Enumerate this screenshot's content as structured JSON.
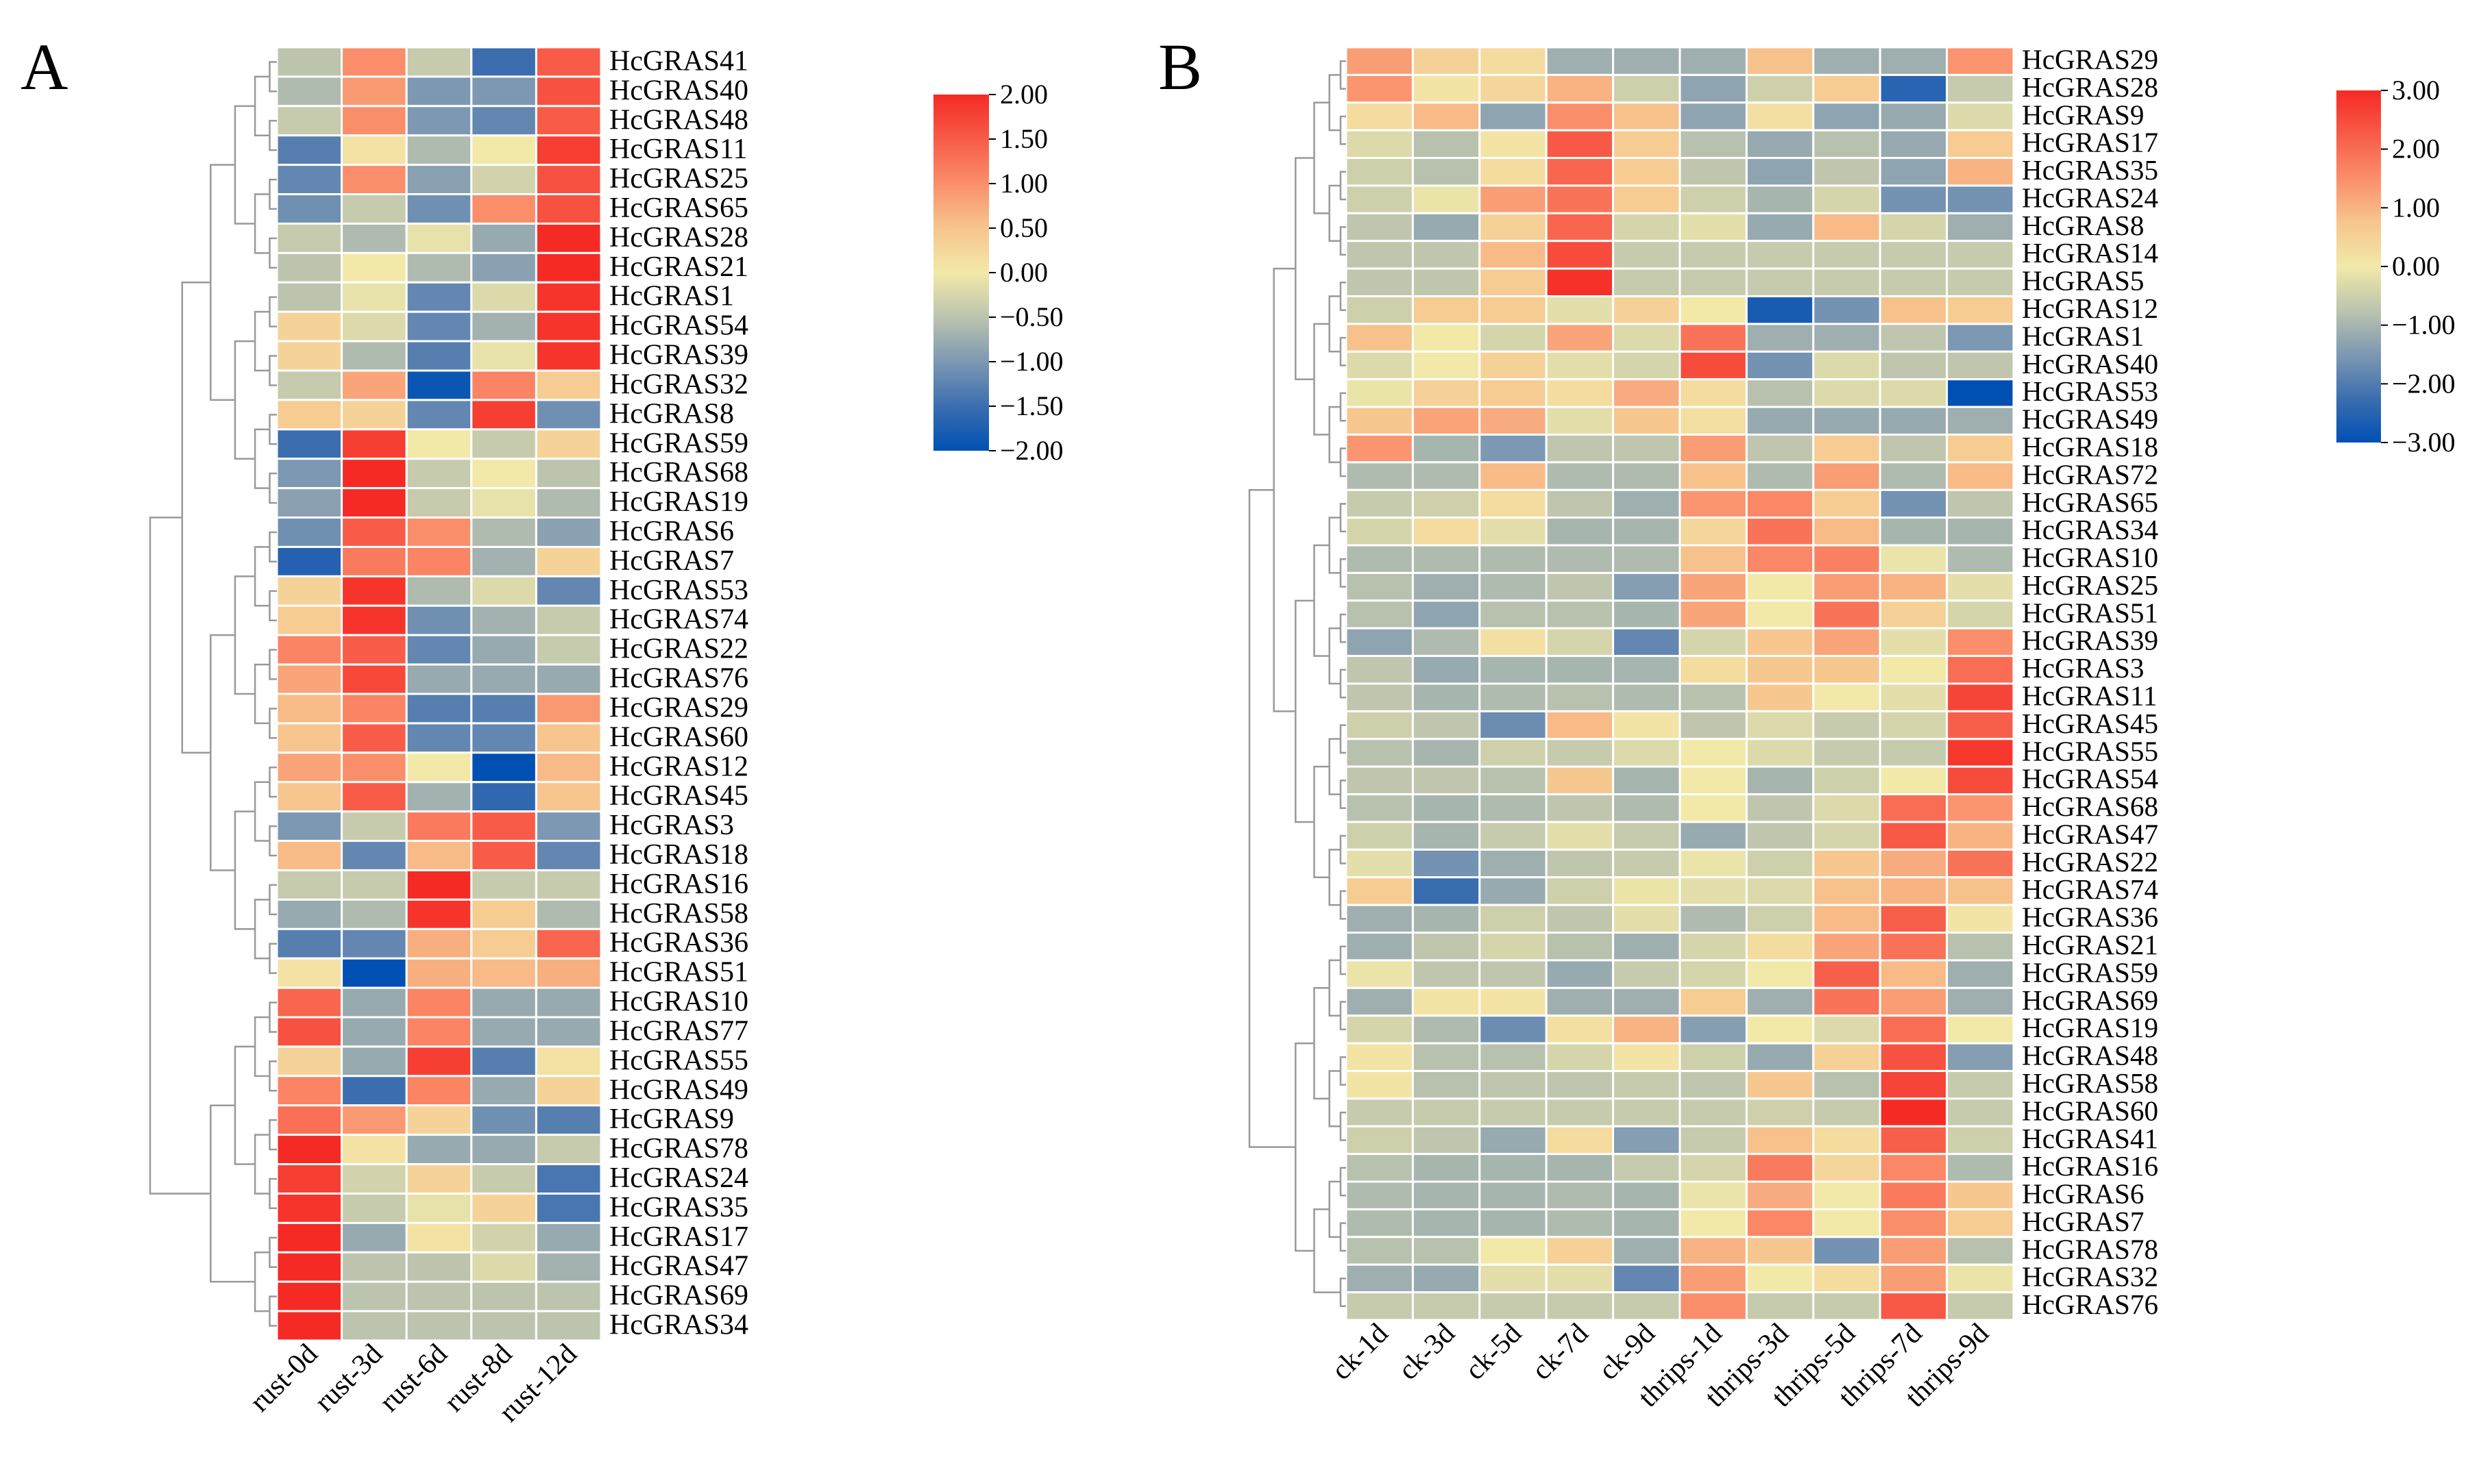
{
  "chart_data": [
    {
      "type": "heatmap",
      "panel_label": "A",
      "columns": [
        "rust-0d",
        "rust-3d",
        "rust-6d",
        "rust-8d",
        "rust-12d"
      ],
      "rows": [
        "HcGRAS41",
        "HcGRAS40",
        "HcGRAS48",
        "HcGRAS11",
        "HcGRAS25",
        "HcGRAS65",
        "HcGRAS28",
        "HcGRAS21",
        "HcGRAS1",
        "HcGRAS54",
        "HcGRAS39",
        "HcGRAS32",
        "HcGRAS8",
        "HcGRAS59",
        "HcGRAS68",
        "HcGRAS19",
        "HcGRAS6",
        "HcGRAS7",
        "HcGRAS53",
        "HcGRAS74",
        "HcGRAS22",
        "HcGRAS76",
        "HcGRAS29",
        "HcGRAS60",
        "HcGRAS12",
        "HcGRAS45",
        "HcGRAS3",
        "HcGRAS18",
        "HcGRAS16",
        "HcGRAS58",
        "HcGRAS36",
        "HcGRAS51",
        "HcGRAS10",
        "HcGRAS77",
        "HcGRAS55",
        "HcGRAS49",
        "HcGRAS9",
        "HcGRAS78",
        "HcGRAS24",
        "HcGRAS35",
        "HcGRAS17",
        "HcGRAS47",
        "HcGRAS69",
        "HcGRAS34"
      ],
      "values": [
        [
          -0.5,
          1.0,
          -0.4,
          -1.5,
          1.5
        ],
        [
          -0.6,
          0.9,
          -1.0,
          -1.0,
          1.6
        ],
        [
          -0.4,
          1.0,
          -1.0,
          -1.2,
          1.5
        ],
        [
          -1.3,
          0.1,
          -0.6,
          0.0,
          1.8
        ],
        [
          -1.2,
          1.0,
          -0.9,
          -0.3,
          1.6
        ],
        [
          -1.1,
          -0.4,
          -1.1,
          1.0,
          1.6
        ],
        [
          -0.4,
          -0.6,
          -0.1,
          -0.8,
          2.0
        ],
        [
          -0.5,
          0.0,
          -0.6,
          -0.9,
          2.0
        ],
        [
          -0.5,
          -0.1,
          -1.2,
          -0.2,
          1.9
        ],
        [
          0.3,
          -0.2,
          -1.2,
          -0.7,
          1.9
        ],
        [
          0.3,
          -0.6,
          -1.3,
          -0.1,
          1.9
        ],
        [
          -0.4,
          0.8,
          -1.9,
          1.1,
          0.4
        ],
        [
          0.4,
          0.3,
          -1.2,
          1.8,
          -1.1
        ],
        [
          -1.5,
          1.8,
          0.0,
          -0.4,
          0.3
        ],
        [
          -1.0,
          2.0,
          -0.4,
          0.0,
          -0.5
        ],
        [
          -0.9,
          2.0,
          -0.4,
          -0.1,
          -0.6
        ],
        [
          -1.1,
          1.5,
          1.0,
          -0.6,
          -0.9
        ],
        [
          -1.7,
          1.2,
          1.1,
          -0.7,
          0.3
        ],
        [
          0.3,
          1.9,
          -0.6,
          -0.2,
          -1.2
        ],
        [
          0.4,
          1.9,
          -1.1,
          -0.7,
          -0.4
        ],
        [
          1.1,
          1.5,
          -1.2,
          -0.8,
          -0.4
        ],
        [
          0.8,
          1.7,
          -0.8,
          -0.8,
          -0.8
        ],
        [
          0.6,
          1.1,
          -1.3,
          -1.3,
          0.9
        ],
        [
          0.5,
          1.5,
          -1.2,
          -1.2,
          0.5
        ],
        [
          0.8,
          1.0,
          0.0,
          -2.0,
          0.6
        ],
        [
          0.5,
          1.5,
          -0.7,
          -1.6,
          0.5
        ],
        [
          -1.0,
          -0.4,
          1.2,
          1.5,
          -1.0
        ],
        [
          0.6,
          -1.2,
          0.6,
          1.5,
          -1.2
        ],
        [
          -0.4,
          -0.4,
          2.0,
          -0.4,
          -0.4
        ],
        [
          -0.8,
          -0.6,
          1.9,
          0.4,
          -0.6
        ],
        [
          -1.3,
          -1.2,
          0.7,
          0.4,
          1.4
        ],
        [
          0.1,
          -2.0,
          0.7,
          0.6,
          0.7
        ],
        [
          1.4,
          -0.8,
          1.1,
          -0.8,
          -0.8
        ],
        [
          1.6,
          -0.8,
          1.1,
          -0.8,
          -0.8
        ],
        [
          0.3,
          -0.8,
          1.8,
          -1.3,
          0.1
        ],
        [
          1.1,
          -1.5,
          1.1,
          -0.8,
          0.3
        ],
        [
          1.3,
          0.9,
          0.3,
          -1.1,
          -1.3
        ],
        [
          2.0,
          0.1,
          -0.8,
          -0.8,
          -0.4
        ],
        [
          1.8,
          -0.3,
          0.3,
          -0.4,
          -1.4
        ],
        [
          1.9,
          -0.4,
          -0.1,
          0.3,
          -1.4
        ],
        [
          2.0,
          -0.8,
          0.1,
          -0.3,
          -0.8
        ],
        [
          2.0,
          -0.5,
          -0.5,
          -0.2,
          -0.7
        ],
        [
          2.0,
          -0.5,
          -0.5,
          -0.5,
          -0.5
        ],
        [
          2.0,
          -0.5,
          -0.5,
          -0.5,
          -0.5
        ]
      ],
      "colorbar": {
        "range": [
          -2.0,
          2.0
        ],
        "ticks": [
          "2.00",
          "1.50",
          "1.00",
          "0.50",
          "0.00",
          "−0.50",
          "−1.00",
          "−1.50",
          "−2.00"
        ]
      }
    },
    {
      "type": "heatmap",
      "panel_label": "B",
      "columns": [
        "ck-1d",
        "ck-3d",
        "ck-5d",
        "ck-7d",
        "ck-9d",
        "thrips-1d",
        "thrips-3d",
        "thrips-5d",
        "thrips-7d",
        "thrips-9d"
      ],
      "rows": [
        "HcGRAS29",
        "HcGRAS28",
        "HcGRAS9",
        "HcGRAS17",
        "HcGRAS35",
        "HcGRAS24",
        "HcGRAS8",
        "HcGRAS14",
        "HcGRAS5",
        "HcGRAS12",
        "HcGRAS1",
        "HcGRAS40",
        "HcGRAS53",
        "HcGRAS49",
        "HcGRAS18",
        "HcGRAS72",
        "HcGRAS65",
        "HcGRAS34",
        "HcGRAS10",
        "HcGRAS25",
        "HcGRAS51",
        "HcGRAS39",
        "HcGRAS3",
        "HcGRAS11",
        "HcGRAS45",
        "HcGRAS55",
        "HcGRAS54",
        "HcGRAS68",
        "HcGRAS47",
        "HcGRAS22",
        "HcGRAS74",
        "HcGRAS36",
        "HcGRAS21",
        "HcGRAS59",
        "HcGRAS69",
        "HcGRAS19",
        "HcGRAS48",
        "HcGRAS58",
        "HcGRAS60",
        "HcGRAS41",
        "HcGRAS16",
        "HcGRAS6",
        "HcGRAS7",
        "HcGRAS78",
        "HcGRAS32",
        "HcGRAS76"
      ],
      "values": [
        [
          1.3,
          0.5,
          0.3,
          -1.1,
          -1.1,
          -1.1,
          0.8,
          -1.1,
          -1.1,
          1.4
        ],
        [
          1.4,
          0.1,
          0.4,
          1.0,
          -0.5,
          -1.3,
          -0.5,
          0.6,
          -2.5,
          -0.6
        ],
        [
          0.3,
          0.9,
          -1.3,
          1.5,
          0.8,
          -1.3,
          0.2,
          -1.3,
          -1.2,
          -0.3
        ],
        [
          -0.3,
          -0.8,
          0.1,
          2.3,
          0.6,
          -0.8,
          -1.2,
          -0.8,
          -1.2,
          0.6
        ],
        [
          -0.5,
          -0.8,
          0.3,
          2.1,
          0.6,
          -0.7,
          -1.3,
          -0.7,
          -1.3,
          1.0
        ],
        [
          -0.5,
          -0.1,
          1.3,
          1.9,
          0.6,
          -0.5,
          -1.0,
          -0.4,
          -1.6,
          -1.6
        ],
        [
          -0.7,
          -1.2,
          0.5,
          2.1,
          -0.4,
          -0.2,
          -1.2,
          0.9,
          -0.4,
          -1.1
        ],
        [
          -0.7,
          -0.7,
          0.9,
          2.5,
          -0.6,
          -0.6,
          -0.6,
          -0.6,
          -0.6,
          -0.6
        ],
        [
          -0.7,
          -0.7,
          0.6,
          2.9,
          -0.6,
          -0.6,
          -0.6,
          -0.6,
          -0.6,
          -0.6
        ],
        [
          -0.5,
          0.6,
          0.6,
          -0.2,
          0.5,
          0.0,
          -2.7,
          -1.6,
          0.8,
          0.6
        ],
        [
          0.8,
          0.0,
          -0.4,
          1.2,
          -0.3,
          1.9,
          -1.1,
          -1.1,
          -0.7,
          -1.5
        ],
        [
          -0.3,
          0.0,
          0.5,
          -0.2,
          -0.4,
          2.5,
          -1.6,
          -0.3,
          -0.7,
          -0.7
        ],
        [
          -0.1,
          0.5,
          0.6,
          0.3,
          1.1,
          0.3,
          -0.8,
          -0.3,
          -0.3,
          -3.0
        ],
        [
          0.7,
          1.2,
          1.1,
          -0.2,
          0.7,
          0.2,
          -1.2,
          -1.2,
          -1.2,
          -1.1
        ],
        [
          1.4,
          -1.0,
          -1.5,
          -0.7,
          -0.7,
          1.3,
          -0.7,
          0.6,
          -0.7,
          0.6
        ],
        [
          -0.9,
          -0.9,
          0.9,
          -0.9,
          -0.9,
          0.8,
          -0.9,
          1.3,
          -0.9,
          0.9
        ],
        [
          -0.6,
          -0.5,
          0.3,
          -0.7,
          -1.1,
          1.4,
          1.6,
          0.6,
          -1.6,
          -0.7
        ],
        [
          -0.4,
          0.3,
          -0.2,
          -1.0,
          -1.0,
          0.4,
          1.9,
          0.9,
          -1.0,
          -1.0
        ],
        [
          -0.9,
          -0.9,
          -0.9,
          -0.9,
          -0.9,
          0.8,
          1.6,
          1.7,
          -0.1,
          -0.9
        ],
        [
          -0.8,
          -1.1,
          -0.9,
          -0.7,
          -1.4,
          1.2,
          0.0,
          1.3,
          1.0,
          -0.2
        ],
        [
          -0.8,
          -1.3,
          -0.8,
          -0.8,
          -1.0,
          1.2,
          0.0,
          1.9,
          0.5,
          -0.4
        ],
        [
          -1.3,
          -0.9,
          0.2,
          -0.4,
          -1.8,
          -0.4,
          0.7,
          1.2,
          -0.2,
          1.5
        ],
        [
          -0.7,
          -1.2,
          -1.0,
          -1.0,
          -1.0,
          0.3,
          0.7,
          0.7,
          0.0,
          2.0
        ],
        [
          -0.7,
          -1.0,
          -0.9,
          -0.8,
          -0.9,
          -0.8,
          0.7,
          0.0,
          -0.2,
          2.6
        ],
        [
          -0.5,
          -0.7,
          -1.7,
          0.9,
          0.1,
          -0.7,
          -0.3,
          -0.6,
          -0.4,
          2.2
        ],
        [
          -0.8,
          -1.0,
          -0.5,
          -0.6,
          -0.3,
          0.0,
          -0.3,
          -0.6,
          -0.6,
          2.8
        ],
        [
          -0.7,
          -0.7,
          -0.8,
          0.7,
          -1.0,
          0.0,
          -1.0,
          -0.5,
          0.0,
          2.5
        ],
        [
          -0.8,
          -1.0,
          -0.9,
          -0.7,
          -0.9,
          0.0,
          -0.7,
          -0.3,
          2.0,
          1.4
        ],
        [
          -0.5,
          -1.0,
          -0.6,
          -0.2,
          -0.6,
          -1.2,
          -0.7,
          -0.4,
          2.3,
          1.0
        ],
        [
          -0.2,
          -1.6,
          -1.1,
          -0.7,
          -0.6,
          -0.1,
          -0.5,
          0.7,
          1.1,
          1.9
        ],
        [
          0.6,
          -2.3,
          -1.2,
          -0.5,
          -0.1,
          -0.2,
          -0.3,
          0.8,
          1.0,
          0.8
        ],
        [
          -1.1,
          -1.0,
          -0.5,
          -0.7,
          -0.2,
          -0.9,
          -0.5,
          0.9,
          2.2,
          0.1
        ],
        [
          -1.1,
          -0.7,
          -0.4,
          -0.8,
          -1.1,
          -0.4,
          0.3,
          1.2,
          1.9,
          -0.8
        ],
        [
          -0.1,
          -0.7,
          -0.7,
          -1.2,
          -0.6,
          -0.4,
          0.0,
          2.2,
          0.9,
          -1.1
        ],
        [
          -1.1,
          0.1,
          0.1,
          -1.1,
          -1.1,
          0.6,
          -1.1,
          1.9,
          1.3,
          -1.1
        ],
        [
          -0.4,
          -0.9,
          -1.7,
          0.2,
          1.0,
          -1.4,
          0.0,
          -0.3,
          2.0,
          0.0
        ],
        [
          0.1,
          -0.8,
          -0.8,
          -0.4,
          0.1,
          -0.5,
          -1.2,
          0.5,
          2.4,
          -1.4
        ],
        [
          0.1,
          -0.8,
          -0.7,
          -0.7,
          -0.6,
          -0.7,
          0.7,
          -0.8,
          2.6,
          -0.6
        ],
        [
          -0.6,
          -0.6,
          -0.6,
          -0.6,
          -0.6,
          -0.6,
          -0.5,
          -0.6,
          3.0,
          -0.6
        ],
        [
          -0.5,
          -0.7,
          -1.2,
          0.3,
          -1.4,
          -0.6,
          0.8,
          0.3,
          2.2,
          -0.5
        ],
        [
          -0.8,
          -1.0,
          -1.0,
          -1.0,
          -0.6,
          -0.4,
          1.8,
          0.4,
          1.6,
          -0.9
        ],
        [
          -0.9,
          -1.0,
          -1.0,
          -0.9,
          -1.0,
          -0.1,
          1.1,
          0.0,
          1.8,
          0.7
        ],
        [
          -0.9,
          -1.0,
          -1.0,
          -0.9,
          -1.0,
          0.0,
          1.6,
          0.0,
          1.5,
          0.6
        ],
        [
          -0.8,
          -0.8,
          0.0,
          0.5,
          -1.1,
          1.0,
          0.7,
          -1.6,
          1.3,
          -0.8
        ],
        [
          -1.1,
          -1.2,
          -0.2,
          -0.2,
          -1.8,
          1.3,
          0.0,
          0.3,
          1.3,
          -0.1
        ],
        [
          -0.6,
          -0.6,
          -0.6,
          -0.6,
          -0.6,
          1.5,
          -0.6,
          -0.6,
          2.3,
          -0.6
        ]
      ],
      "colorbar": {
        "range": [
          -3.0,
          3.0
        ],
        "ticks": [
          "3.00",
          "2.00",
          "1.00",
          "0.00",
          "−1.00",
          "−2.00",
          "−3.00"
        ]
      }
    }
  ],
  "colors": {
    "high": "#f52a25",
    "mid": "#f2e9a8",
    "low": "#0050b4",
    "dendrogram": "#999999"
  }
}
